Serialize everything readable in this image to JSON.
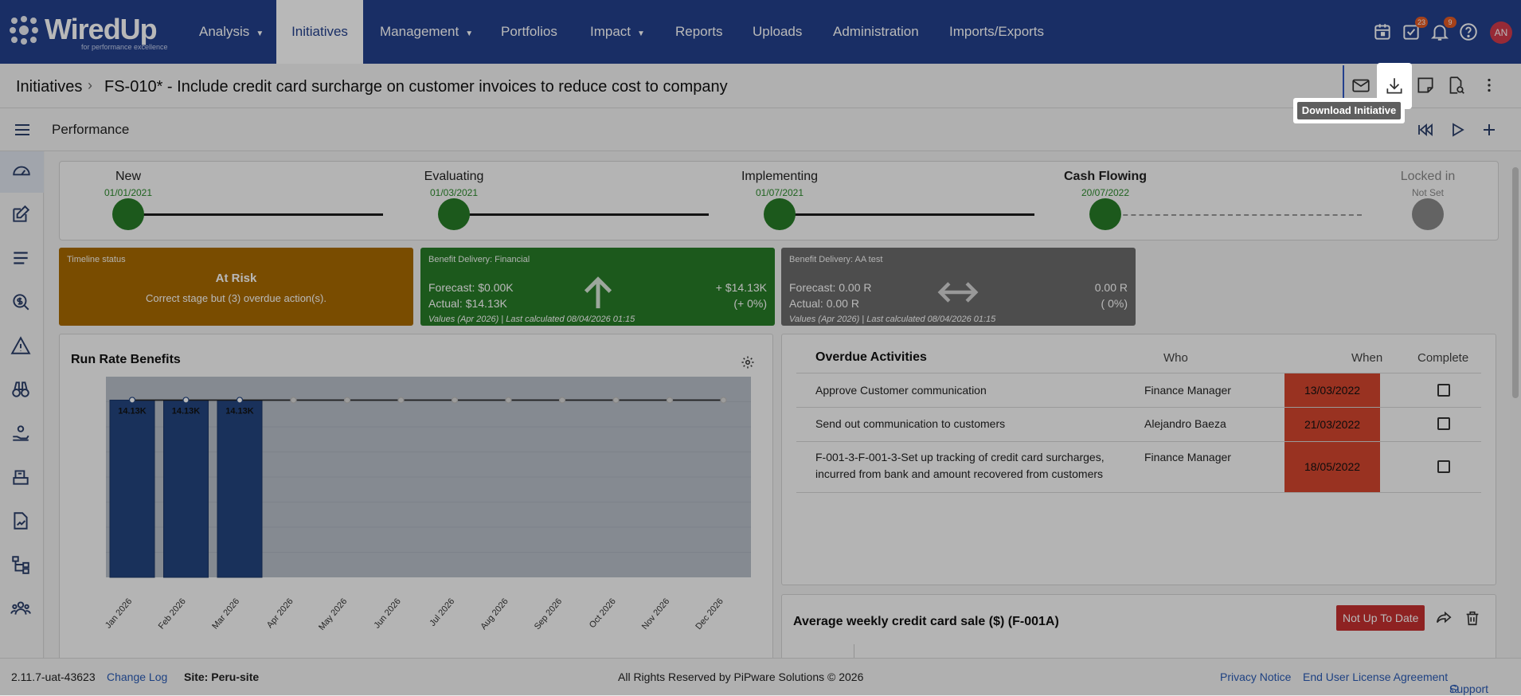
{
  "app": {
    "logo_text": "WiredUp",
    "logo_tagline": "for performance excellence"
  },
  "nav": {
    "items": [
      {
        "label": "Analysis",
        "caret": true
      },
      {
        "label": "Initiatives",
        "active": true
      },
      {
        "label": "Management",
        "caret": true
      },
      {
        "label": "Portfolios"
      },
      {
        "label": "Impact",
        "caret": true
      },
      {
        "label": "Reports"
      },
      {
        "label": "Uploads"
      },
      {
        "label": "Administration"
      },
      {
        "label": "Imports/Exports"
      }
    ],
    "tasks_badge": "23",
    "notifications_badge": "9",
    "avatar_initials": "AN"
  },
  "breadcrumb": {
    "root": "Initiatives",
    "current": "FS-010* - Include credit card surcharge on customer invoices to reduce cost to company"
  },
  "tooltip": {
    "text": "Download Initiative"
  },
  "section": {
    "title": "Performance"
  },
  "stages": [
    {
      "name": "New",
      "date": "01/01/2021",
      "state": "done"
    },
    {
      "name": "Evaluating",
      "date": "01/03/2021",
      "state": "done"
    },
    {
      "name": "Implementing",
      "date": "01/07/2021",
      "state": "done"
    },
    {
      "name": "Cash Flowing",
      "date": "20/07/2022",
      "state": "current"
    },
    {
      "name": "Locked in",
      "date": "Not Set",
      "state": "future"
    }
  ],
  "cards": {
    "timeline": {
      "label": "Timeline status",
      "status": "At Risk",
      "detail": "Correct stage but (3) overdue action(s).",
      "color": "#a86a00"
    },
    "financial": {
      "label": "Benefit Delivery: Financial",
      "forecast": "Forecast: $0.00K",
      "actual": "Actual: $14.13K",
      "delta": "+ $14.13K",
      "delta_pct": "(+ 0%)",
      "footer": "Values (Apr 2026) | Last calculated 08/04/2026 01:15",
      "color": "#277c27"
    },
    "aa_test": {
      "label": "Benefit Delivery: AA test",
      "forecast": "Forecast: 0.00 R",
      "actual": "Actual: 0.00 R",
      "delta": "0.00 R",
      "delta_pct": "( 0%)",
      "footer": "Values (Apr 2026) | Last calculated 08/04/2026 01:15",
      "color": "#6b6b6b"
    }
  },
  "run_rate": {
    "title": "Run Rate Benefits"
  },
  "chart_data": {
    "type": "bar",
    "categories": [
      "Jan 2026",
      "Feb 2026",
      "Mar 2026",
      "Apr 2026",
      "May 2026",
      "Jun 2026",
      "Jul 2026",
      "Aug 2026",
      "Sep 2026",
      "Oct 2026",
      "Nov 2026",
      "Dec 2026"
    ],
    "series": [
      {
        "values": [
          14.13,
          14.13,
          14.13,
          null,
          null,
          null,
          null,
          null,
          null,
          null,
          null,
          null
        ],
        "labels": [
          "14.13K",
          "14.13K",
          "14.13K"
        ],
        "color": "#23457f"
      }
    ],
    "line_values": [
      14.13,
      14.13,
      14.13,
      14.13,
      14.13,
      14.13,
      14.13,
      14.13,
      14.13,
      14.13,
      14.13,
      14.13
    ],
    "ylim": [
      0,
      16
    ],
    "grid": true
  },
  "overdue": {
    "title": "Overdue Activities",
    "columns": {
      "who": "Who",
      "when": "When",
      "complete": "Complete"
    },
    "rows": [
      {
        "activity": "Approve Customer communication",
        "who": "Finance Manager",
        "when": "13/03/2022",
        "complete": false
      },
      {
        "activity": "Send out communication to customers",
        "who": "Alejandro Baeza",
        "when": "21/03/2022",
        "complete": false
      },
      {
        "activity": "F-001-3-F-001-3-Set up tracking of credit card surcharges, incurred from bank and amount recovered from customers",
        "who": "Finance Manager",
        "when": "18/05/2022",
        "complete": false
      }
    ]
  },
  "measure": {
    "title": "Average weekly credit card sale ($) (F-001A)",
    "status": "Not Up To Date"
  },
  "footer": {
    "version": "2.11.7-uat-43623",
    "changelog": "Change Log",
    "site": "Site: Peru-site",
    "copyright": "All Rights Reserved by PiPware Solutions © 2026",
    "privacy": "Privacy Notice",
    "eula": "End User License Agreement",
    "support": "Support"
  }
}
